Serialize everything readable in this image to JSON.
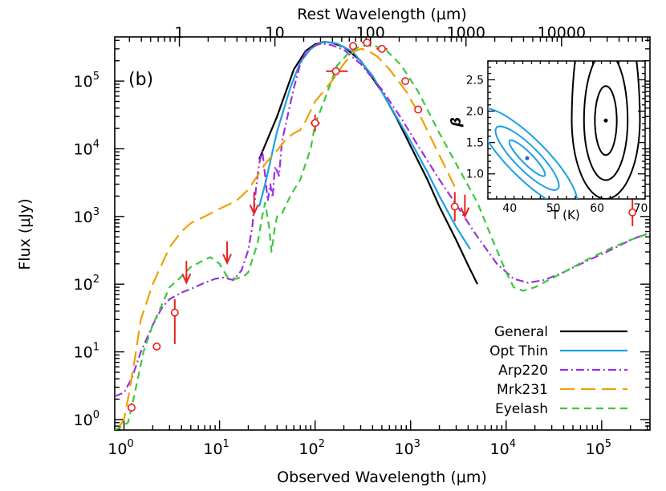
{
  "chart_data": [
    {
      "type": "line",
      "panel_label": "(b)",
      "xlabel_prefix": "Observed Wavelength (",
      "xlabel_unit": "μ",
      "xlabel_suffix": "m)",
      "ylabel_prefix": "Flux (",
      "ylabel_unit": "μ",
      "ylabel_suffix": "Jy)",
      "x2label_prefix": "Rest Wavelength (",
      "x2label_unit": "μ",
      "x2label_suffix": "m)",
      "xscale": "log",
      "yscale": "log",
      "xlim": [
        0.8,
        320000
      ],
      "ylim": [
        0.7,
        450000
      ],
      "x2_ticks": [
        {
          "label": "1",
          "obs": 3.8
        },
        {
          "label": "10",
          "obs": 38
        },
        {
          "label": "100",
          "obs": 380
        },
        {
          "label": "1000",
          "obs": 3800
        },
        {
          "label": "10000",
          "obs": 38000
        }
      ],
      "x_ticks": [
        {
          "value": 1,
          "label": "10",
          "exp": "0"
        },
        {
          "value": 10,
          "label": "10",
          "exp": "1"
        },
        {
          "value": 100,
          "label": "10",
          "exp": "2"
        },
        {
          "value": 1000,
          "label": "10",
          "exp": "3"
        },
        {
          "value": 10000,
          "label": "10",
          "exp": "4"
        },
        {
          "value": 100000,
          "label": "10",
          "exp": "5"
        }
      ],
      "y_ticks": [
        {
          "value": 1,
          "label": "10",
          "exp": "0"
        },
        {
          "value": 10,
          "label": "10",
          "exp": "1"
        },
        {
          "value": 100,
          "label": "10",
          "exp": "2"
        },
        {
          "value": 1000,
          "label": "10",
          "exp": "3"
        },
        {
          "value": 10000,
          "label": "10",
          "exp": "4"
        },
        {
          "value": 100000,
          "label": "10",
          "exp": "5"
        }
      ],
      "legend_position": "bottom-right",
      "series": [
        {
          "name": "General",
          "color": "#000000",
          "dash": "solid",
          "points": [
            [
              26,
              7000
            ],
            [
              40,
              30000
            ],
            [
              60,
              150000
            ],
            [
              80,
              280000
            ],
            [
              100,
              350000
            ],
            [
              125,
              380000
            ],
            [
              150,
              370000
            ],
            [
              200,
              320000
            ],
            [
              300,
              200000
            ],
            [
              500,
              70000
            ],
            [
              700,
              30000
            ],
            [
              1000,
              11000
            ],
            [
              1500,
              3500
            ],
            [
              2000,
              1400
            ],
            [
              3000,
              450
            ],
            [
              4000,
              190
            ],
            [
              5000,
              100
            ]
          ]
        },
        {
          "name": "Opt Thin",
          "color": "#1ea0e6",
          "dash": "solid",
          "points": [
            [
              26,
              1400
            ],
            [
              30,
              3000
            ],
            [
              40,
              18000
            ],
            [
              55,
              80000
            ],
            [
              70,
              190000
            ],
            [
              90,
              300000
            ],
            [
              110,
              360000
            ],
            [
              130,
              380000
            ],
            [
              170,
              360000
            ],
            [
              250,
              270000
            ],
            [
              400,
              120000
            ],
            [
              600,
              45000
            ],
            [
              1000,
              13000
            ],
            [
              1500,
              4500
            ],
            [
              2000,
              2000
            ],
            [
              3000,
              700
            ],
            [
              4200,
              330
            ]
          ]
        },
        {
          "name": "Arp220",
          "color": "#9b30e0",
          "dash": "dashdot",
          "points": [
            [
              0.8,
              2.2
            ],
            [
              1,
              2.5
            ],
            [
              1.2,
              4
            ],
            [
              1.5,
              10
            ],
            [
              2,
              25
            ],
            [
              2.5,
              45
            ],
            [
              3,
              60
            ],
            [
              4,
              75
            ],
            [
              5,
              85
            ],
            [
              7,
              105
            ],
            [
              9,
              120
            ],
            [
              11,
              125
            ],
            [
              14,
              115
            ],
            [
              17,
              160
            ],
            [
              20,
              320
            ],
            [
              22,
              700
            ],
            [
              24,
              2500
            ],
            [
              26,
              6000
            ],
            [
              28,
              9500
            ],
            [
              30,
              4000
            ],
            [
              32,
              1700
            ],
            [
              34,
              3000
            ],
            [
              36,
              1900
            ],
            [
              38,
              5500
            ],
            [
              42,
              4000
            ],
            [
              45,
              13000
            ],
            [
              50,
              25000
            ],
            [
              60,
              80000
            ],
            [
              70,
              180000
            ],
            [
              80,
              270000
            ],
            [
              100,
              340000
            ],
            [
              120,
              360000
            ],
            [
              150,
              340000
            ],
            [
              200,
              290000
            ],
            [
              300,
              180000
            ],
            [
              500,
              75000
            ],
            [
              800,
              28000
            ],
            [
              1200,
              11000
            ],
            [
              2000,
              3500
            ],
            [
              3000,
              1500
            ],
            [
              5000,
              500
            ],
            [
              8000,
              200
            ],
            [
              12000,
              120
            ],
            [
              17000,
              105
            ],
            [
              25000,
              115
            ],
            [
              40000,
              150
            ],
            [
              70000,
              220
            ],
            [
              130000,
              330
            ],
            [
              200000,
              450
            ],
            [
              320000,
              580
            ]
          ]
        },
        {
          "name": "Mrk231",
          "color": "#f0a000",
          "dash": "longdash",
          "points": [
            [
              0.9,
              0.8
            ],
            [
              1,
              1.0
            ],
            [
              1.1,
              2
            ],
            [
              1.3,
              8
            ],
            [
              1.5,
              30
            ],
            [
              2,
              100
            ],
            [
              2.5,
              200
            ],
            [
              3,
              350
            ],
            [
              4,
              600
            ],
            [
              5,
              800
            ],
            [
              7,
              1000
            ],
            [
              10,
              1300
            ],
            [
              15,
              1700
            ],
            [
              20,
              2500
            ],
            [
              25,
              4000
            ],
            [
              30,
              6000
            ],
            [
              40,
              9500
            ],
            [
              50,
              14000
            ],
            [
              60,
              17000
            ],
            [
              70,
              19000
            ],
            [
              80,
              26000
            ],
            [
              100,
              50000
            ],
            [
              150,
              100000
            ],
            [
              200,
              180000
            ],
            [
              250,
              270000
            ],
            [
              300,
              300000
            ],
            [
              350,
              290000
            ],
            [
              450,
              230000
            ],
            [
              600,
              150000
            ],
            [
              900,
              70000
            ],
            [
              1300,
              28000
            ],
            [
              2000,
              8000
            ],
            [
              3000,
              2500
            ]
          ]
        },
        {
          "name": "Eyelash",
          "color": "#3cc83c",
          "dash": "dashed",
          "points": [
            [
              0.8,
              0.7
            ],
            [
              1.1,
              0.9
            ],
            [
              1.3,
              2.5
            ],
            [
              1.6,
              10
            ],
            [
              2,
              25
            ],
            [
              2.5,
              50
            ],
            [
              3,
              90
            ],
            [
              4,
              130
            ],
            [
              5,
              180
            ],
            [
              7,
              230
            ],
            [
              8,
              250
            ],
            [
              10,
              200
            ],
            [
              12,
              130
            ],
            [
              15,
              120
            ],
            [
              18,
              130
            ],
            [
              20,
              150
            ],
            [
              25,
              400
            ],
            [
              28,
              1000
            ],
            [
              30,
              1600
            ],
            [
              33,
              700
            ],
            [
              35,
              300
            ],
            [
              38,
              700
            ],
            [
              40,
              1000
            ],
            [
              45,
              1100
            ],
            [
              55,
              2000
            ],
            [
              70,
              3500
            ],
            [
              90,
              10000
            ],
            [
              100,
              23000
            ],
            [
              130,
              60000
            ],
            [
              170,
              170000
            ],
            [
              230,
              270000
            ],
            [
              300,
              330000
            ],
            [
              400,
              340000
            ],
            [
              550,
              290000
            ],
            [
              800,
              170000
            ],
            [
              1200,
              70000
            ],
            [
              2000,
              17000
            ],
            [
              3000,
              6000
            ],
            [
              5000,
              1600
            ],
            [
              7000,
              500
            ],
            [
              10000,
              150
            ],
            [
              12000,
              90
            ],
            [
              15000,
              80
            ],
            [
              20000,
              90
            ],
            [
              40000,
              150
            ],
            [
              70000,
              230
            ],
            [
              130000,
              350
            ],
            [
              200000,
              450
            ],
            [
              320000,
              570
            ]
          ]
        }
      ],
      "detections": [
        {
          "x": 1.2,
          "y": 1.5,
          "yerr": [
            1.3,
            1.75
          ]
        },
        {
          "x": 2.2,
          "y": 12,
          "yerr": [
            11,
            13.2
          ]
        },
        {
          "x": 3.4,
          "y": 38,
          "yerr": [
            13,
            60
          ]
        },
        {
          "x": 100,
          "y": 24000,
          "yerr": [
            18000,
            32000
          ],
          "xerr": [
            90,
            112
          ]
        },
        {
          "x": 165,
          "y": 140000,
          "yerr": [
            125000,
            157000
          ],
          "xerr": [
            130,
            220
          ]
        },
        {
          "x": 250,
          "y": 330000,
          "yerr": [
            300000,
            360000
          ],
          "xerr": [
            230,
            275
          ]
        },
        {
          "x": 350,
          "y": 370000,
          "yerr": [
            340000,
            400000
          ],
          "xerr": [
            310,
            390
          ]
        },
        {
          "x": 500,
          "y": 300000,
          "yerr": [
            280000,
            325000
          ],
          "xerr": [
            440,
            570
          ]
        },
        {
          "x": 880,
          "y": 100000,
          "yerr": [
            93000,
            108000
          ]
        },
        {
          "x": 1200,
          "y": 38000,
          "yerr": [
            35000,
            41000
          ],
          "xerr": [
            1100,
            1320
          ]
        },
        {
          "x": 2900,
          "y": 1400,
          "yerr": [
            850,
            2300
          ]
        },
        {
          "x": 210000,
          "y": 1150,
          "yerr": [
            720,
            1800
          ]
        }
      ],
      "upper_limits": [
        {
          "x": 4.5,
          "y": 220
        },
        {
          "x": 12,
          "y": 430
        },
        {
          "x": 23,
          "y": 2300
        },
        {
          "x": 3700,
          "y": 2100
        }
      ]
    },
    {
      "type": "line",
      "xlabel": "T (K)",
      "ylabel": "β",
      "xlim": [
        35,
        71
      ],
      "ylim": [
        0.6,
        2.8
      ],
      "x_ticks": [
        40,
        50,
        60,
        70
      ],
      "y_ticks": [
        1.0,
        1.5,
        2.0,
        2.5
      ],
      "contours": [
        {
          "name": "General",
          "color": "#000000",
          "center": [
            62,
            1.85
          ],
          "levels": [
            {
              "a": 2.5,
              "b_up": 0.55,
              "b_down": 0.55
            },
            {
              "a": 5.0,
              "b_up": 1.1,
              "b_down": 0.95
            },
            {
              "a": 7.8,
              "b_up": 2.2,
              "b_down": 1.25
            }
          ]
        },
        {
          "name": "Opt Thin",
          "color": "#1ea0e6",
          "center": [
            44,
            1.25
          ],
          "levels": [
            {
              "half_len": 4,
              "width": 0.09
            },
            {
              "half_len": 7,
              "width": 0.19
            },
            {
              "half_len": 11,
              "width": 0.31
            }
          ]
        }
      ]
    }
  ]
}
